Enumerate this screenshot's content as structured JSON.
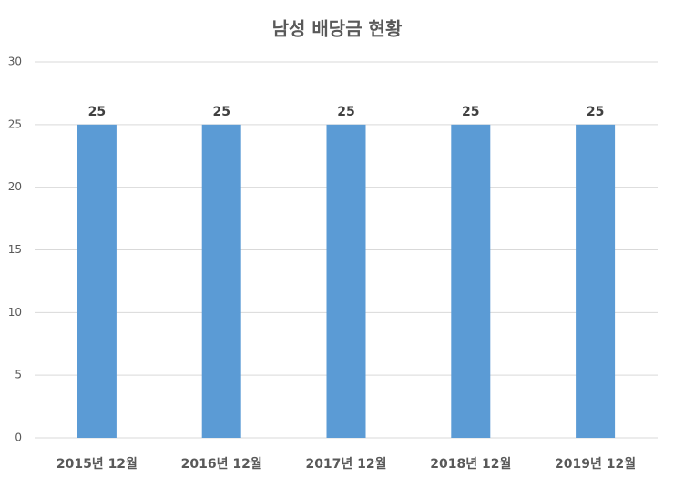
{
  "chart_data": {
    "type": "bar",
    "title": "남성 배당금 현황",
    "categories": [
      "2015년 12월",
      "2016년 12월",
      "2017년 12월",
      "2018년 12월",
      "2019년 12월"
    ],
    "values": [
      25,
      25,
      25,
      25,
      25
    ],
    "color": "#5b9bd5",
    "ylim": [
      0,
      30
    ],
    "yticks": [
      0,
      5,
      10,
      15,
      20,
      25,
      30
    ],
    "grid": true
  }
}
